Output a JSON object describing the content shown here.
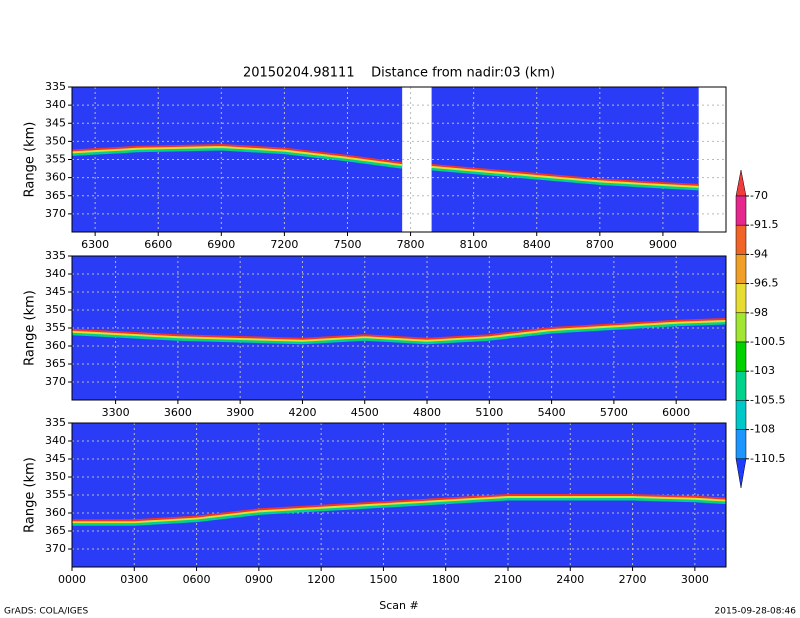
{
  "title": "20150204.98111    Distance from nadir:03 (km)",
  "x_label": "Scan #",
  "footer_left": "GrADS: COLA/IGES",
  "footer_right": "2015-09-28-08:46",
  "colorbar": {
    "levels": [
      -70,
      -91.5,
      -94,
      -96.5,
      -98,
      -100.5,
      -103,
      -105.5,
      -108,
      -110.5
    ],
    "colors": [
      "#f03c3c",
      "#e6288c",
      "#f06428",
      "#f0a028",
      "#e6dc32",
      "#a0e632",
      "#00d200",
      "#00d28c",
      "#00c8c8",
      "#1e96ff",
      "#1e3cff"
    ]
  },
  "chart_data": [
    {
      "type": "line",
      "y_label": "Range (km)",
      "background": "#2a3cf5",
      "color": "#f03232",
      "y_inverted": true,
      "grid": true,
      "xlim": [
        6190,
        9300
      ],
      "ylim": [
        335,
        375
      ],
      "xticks": [
        6300,
        6600,
        6900,
        7200,
        7500,
        7800,
        8100,
        8400,
        8700,
        9000
      ],
      "yticks": [
        335,
        340,
        345,
        350,
        355,
        360,
        365,
        370
      ],
      "coverage": [
        [
          6190,
          7760
        ],
        [
          7900,
          9170
        ]
      ],
      "x": [
        6190,
        6500,
        6900,
        7200,
        7500,
        7760,
        7830,
        7900,
        8400,
        8700,
        9000,
        9170
      ],
      "values": [
        352.5,
        351.5,
        351,
        352,
        354,
        356,
        null,
        356.5,
        359,
        360.5,
        361.5,
        362
      ]
    },
    {
      "type": "line",
      "y_label": "Range (km)",
      "background": "#2a3cf5",
      "color": "#f03232",
      "y_inverted": true,
      "grid": true,
      "xlim": [
        3090,
        6240
      ],
      "ylim": [
        335,
        375
      ],
      "xticks": [
        3300,
        3600,
        3900,
        4200,
        4500,
        4800,
        5100,
        5400,
        5700,
        6000
      ],
      "yticks": [
        335,
        340,
        345,
        350,
        355,
        360,
        365,
        370
      ],
      "coverage": [
        [
          3090,
          6240
        ]
      ],
      "x": [
        3090,
        3600,
        3900,
        4200,
        4500,
        4800,
        5100,
        5400,
        5700,
        6000,
        6240
      ],
      "values": [
        355.5,
        357,
        357.5,
        358,
        357,
        358,
        357,
        355,
        354,
        353,
        352.5
      ]
    },
    {
      "type": "line",
      "y_label": "Range (km)",
      "background": "#2a3cf5",
      "color": "#f03232",
      "y_inverted": true,
      "grid": true,
      "xlim": [
        0,
        3150
      ],
      "ylim": [
        335,
        375
      ],
      "xticks": [
        {
          "value": 0,
          "label": "0000"
        },
        {
          "value": 300,
          "label": "0300"
        },
        {
          "value": 600,
          "label": "0600"
        },
        {
          "value": 900,
          "label": "0900"
        },
        1200,
        1500,
        1800,
        2100,
        2400,
        2700,
        3000
      ],
      "yticks": [
        335,
        340,
        345,
        350,
        355,
        360,
        365,
        370
      ],
      "coverage": [
        [
          0,
          3150
        ]
      ],
      "x": [
        0,
        300,
        600,
        900,
        1200,
        1500,
        1800,
        2100,
        2200,
        2400,
        2700,
        3000,
        3150
      ],
      "values": [
        362,
        362,
        361,
        359,
        358,
        357,
        356,
        355,
        355,
        355,
        355,
        355.5,
        356
      ]
    }
  ]
}
